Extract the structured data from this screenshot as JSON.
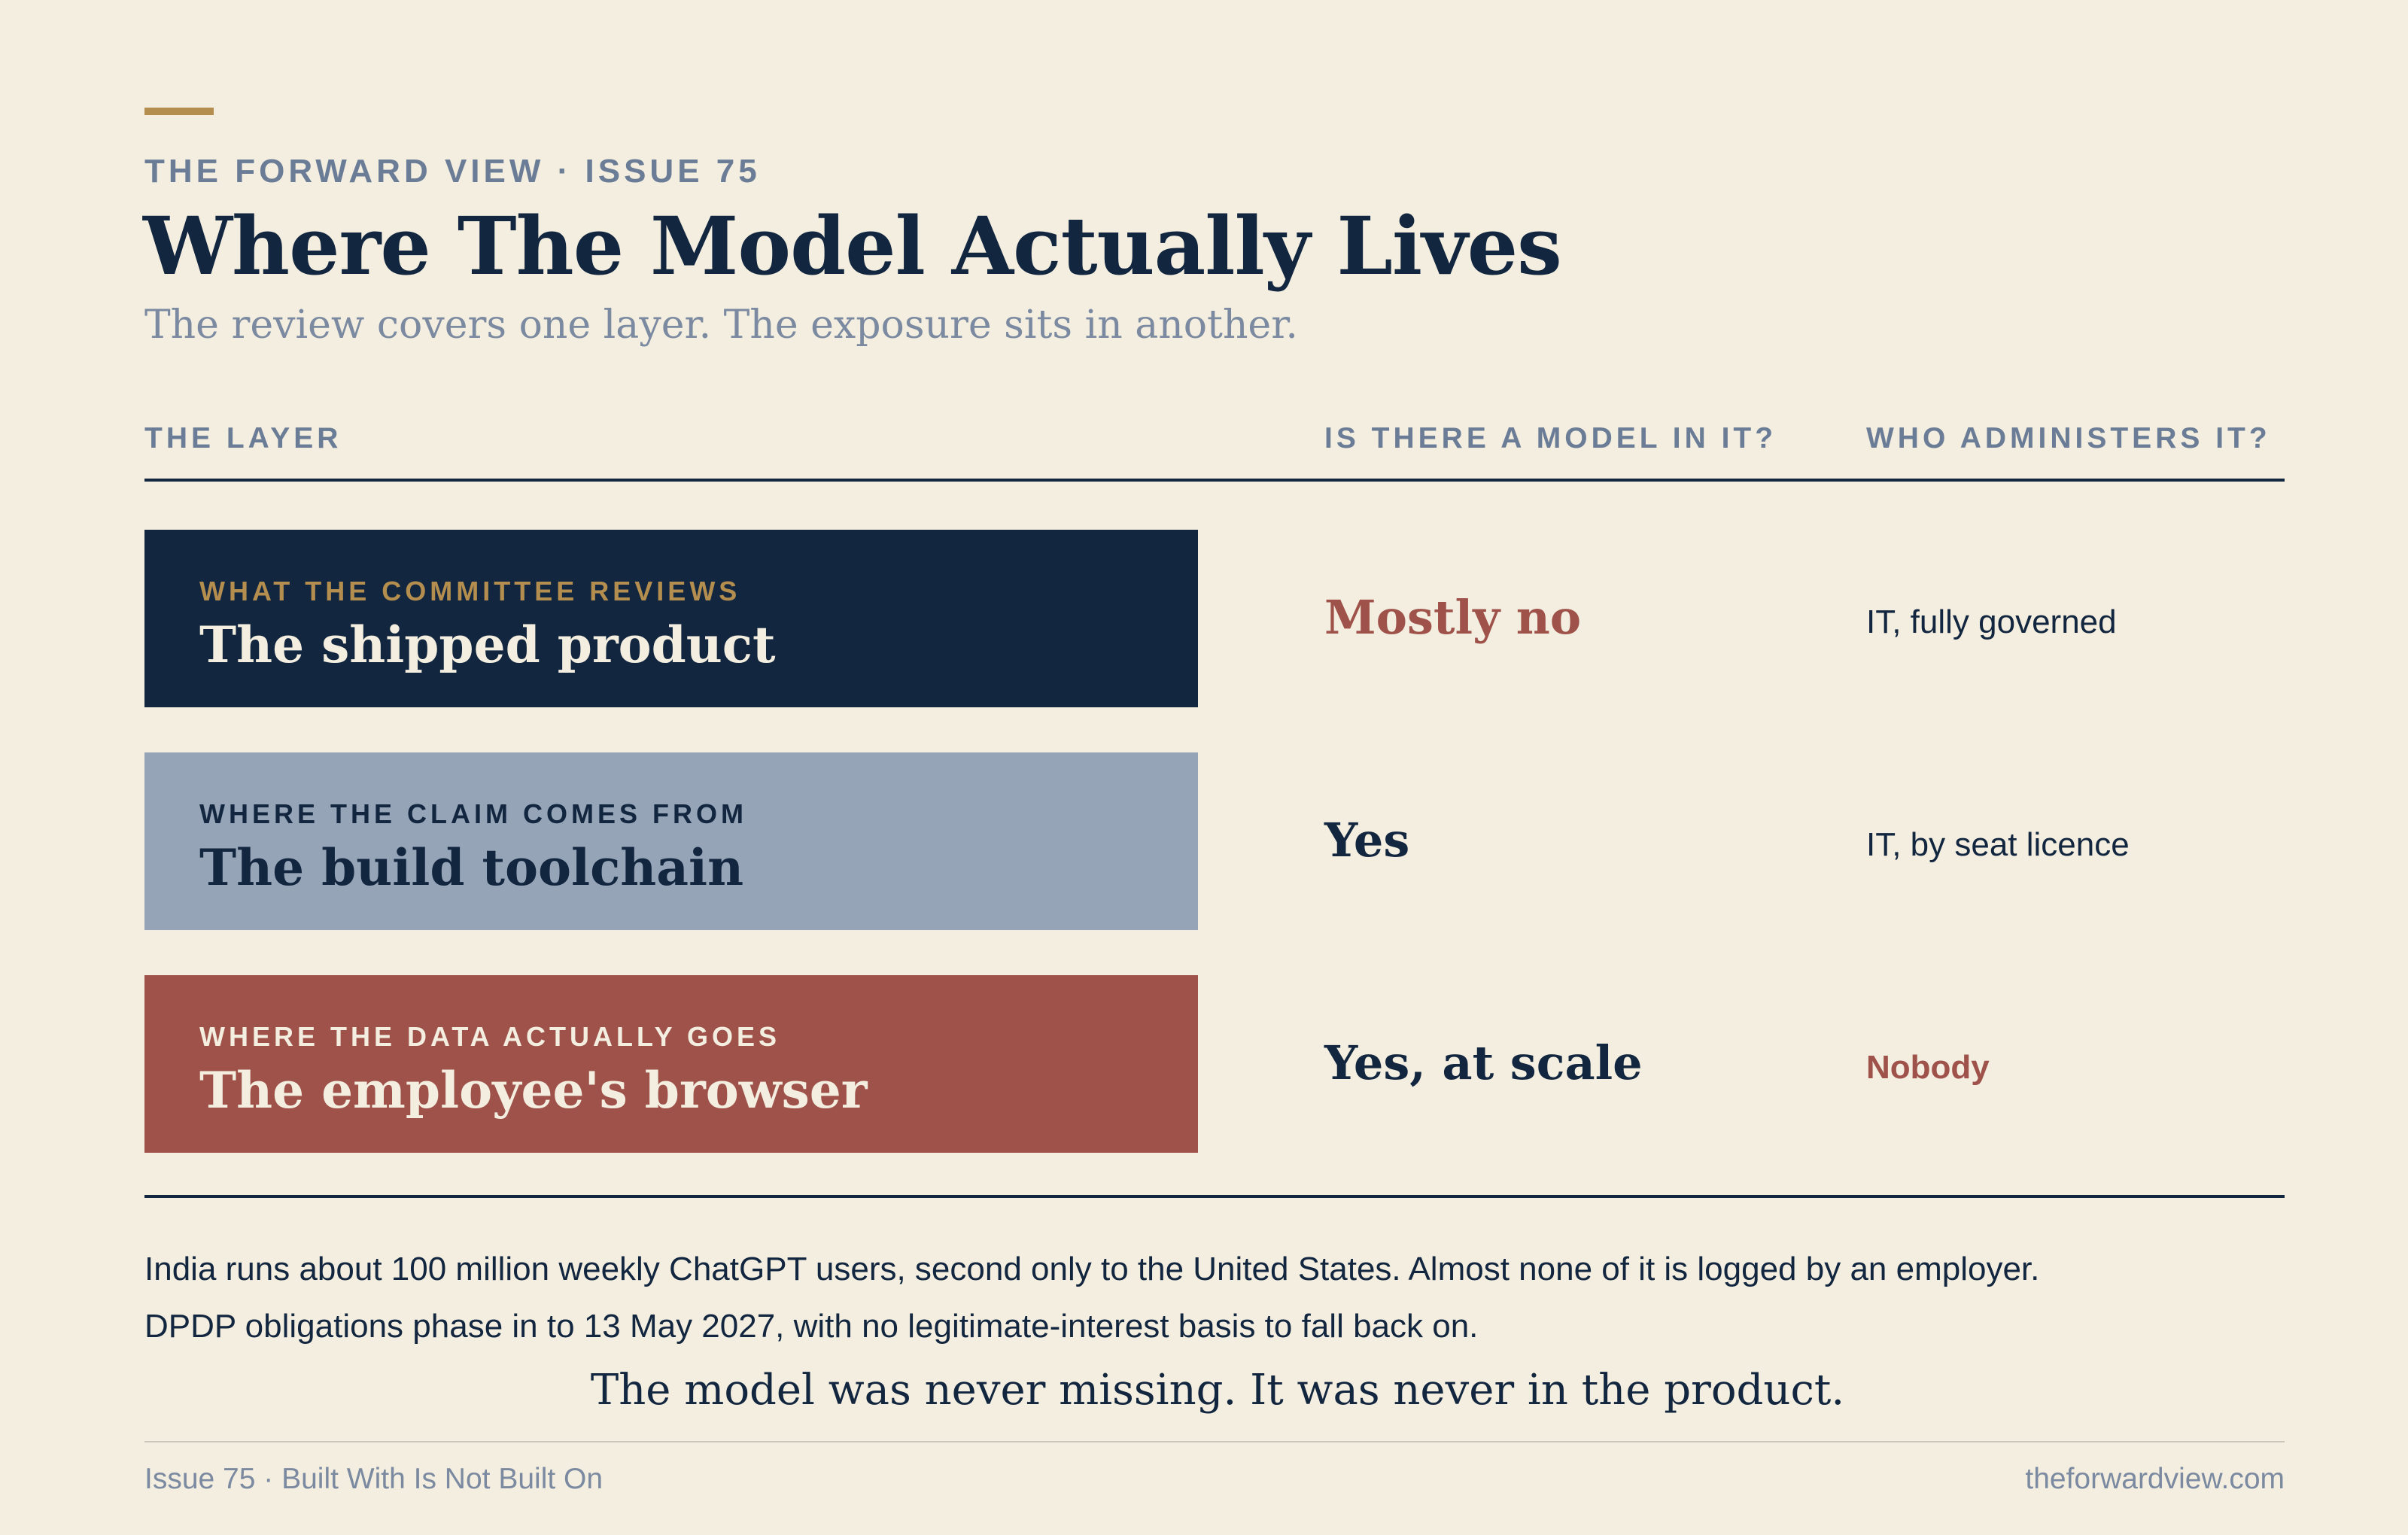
{
  "header": {
    "eyebrow": "THE FORWARD VIEW · ISSUE 75",
    "title": "Where The Model Actually Lives",
    "subtitle": "The review covers one layer. The exposure sits in another."
  },
  "table": {
    "columns": [
      "THE LAYER",
      "IS THERE A MODEL IN IT?",
      "WHO ADMINISTERS IT?"
    ],
    "rows": [
      {
        "kicker": "WHAT THE COMMITTEE REVIEWS",
        "layer": "The shipped product",
        "model": "Mostly no",
        "admin": "IT, fully governed"
      },
      {
        "kicker": "WHERE THE CLAIM COMES FROM",
        "layer": "The build toolchain",
        "model": "Yes",
        "admin": "IT, by seat licence"
      },
      {
        "kicker": "WHERE THE DATA ACTUALLY GOES",
        "layer": "The employee's browser",
        "model": "Yes, at scale",
        "admin": "Nobody"
      }
    ]
  },
  "notes": [
    "India runs about 100 million weekly ChatGPT users, second only to the United States. Almost none of it is logged by an employer.",
    "DPDP obligations phase in to 13 May 2027, with no legitimate-interest basis to fall back on."
  ],
  "closing": "The model was never missing. It was never in the product.",
  "footer": {
    "left": "Issue 75 · Built With Is Not Built On",
    "right": "theforwardview.com"
  },
  "colors": {
    "background": "#f3eee0",
    "navy": "#12263f",
    "slate": "#96a4b7",
    "brick": "#9e524a",
    "gold": "#b48e4e",
    "muted": "#6b7d96"
  }
}
